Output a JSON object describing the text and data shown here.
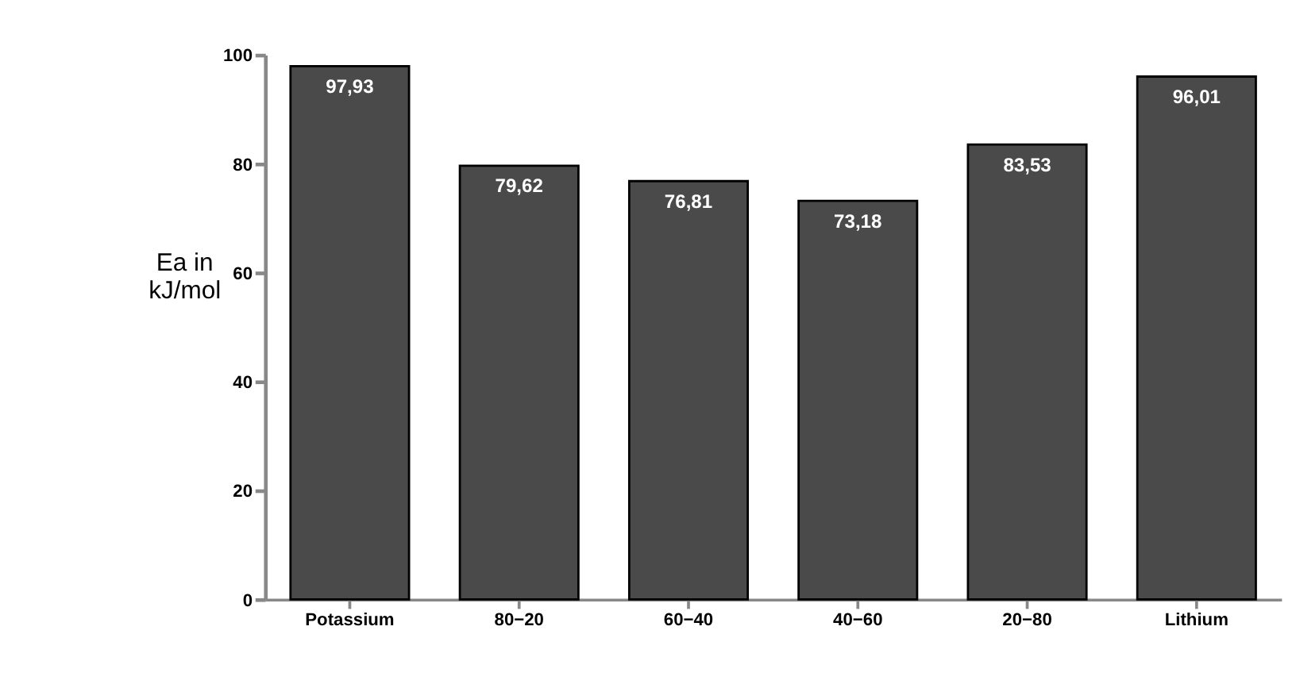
{
  "chart_data": {
    "type": "bar",
    "ylabel": "Ea in\nkJ/mol",
    "categories": [
      "Potassium",
      "80−20",
      "60−40",
      "40−60",
      "20−80",
      "Lithium"
    ],
    "values": [
      97.93,
      79.62,
      76.81,
      73.18,
      83.53,
      96.01
    ],
    "value_labels": [
      "97,93",
      "79,62",
      "76,81",
      "73,18",
      "83,53",
      "96,01"
    ],
    "color": "#4a4a4a",
    "ylim": [
      0,
      100
    ],
    "yticks": [
      0,
      20,
      40,
      60,
      80,
      100
    ],
    "grid": false
  }
}
